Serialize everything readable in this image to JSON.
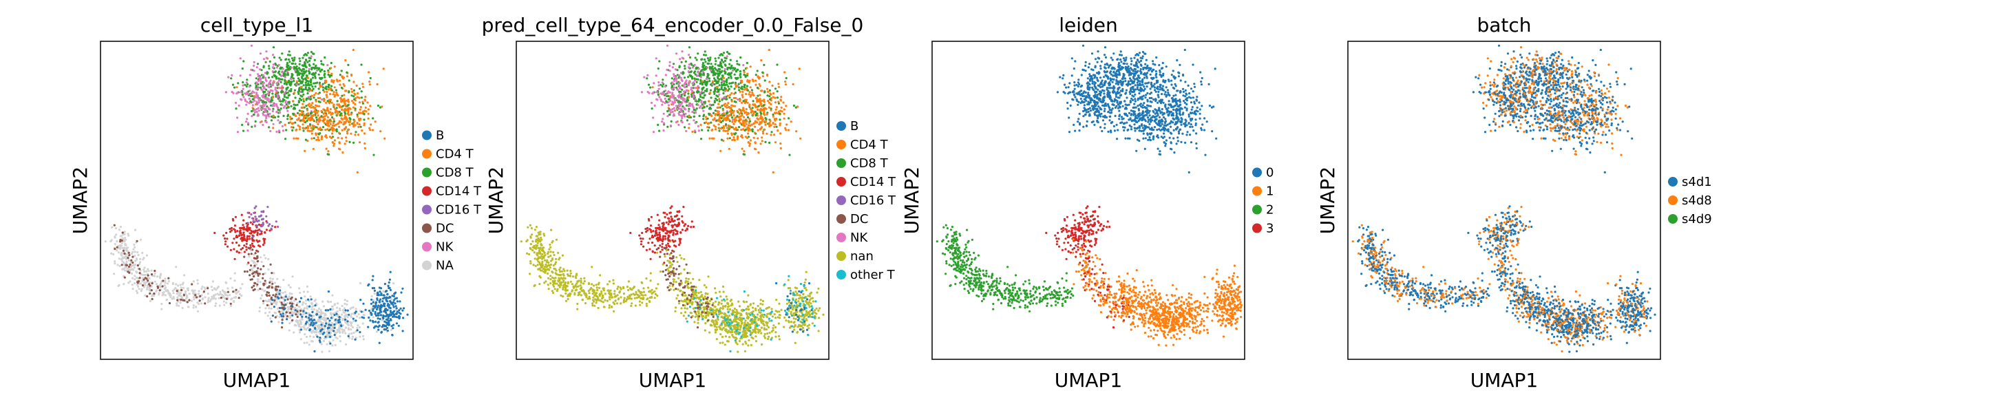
{
  "chart_data": [
    {
      "type": "scatter",
      "title": "cell_type_l1",
      "xlabel": "UMAP1",
      "ylabel": "UMAP2",
      "grid": false,
      "legend_position": "right",
      "categories": [
        {
          "label": "B",
          "color": "#1f77b4"
        },
        {
          "label": "CD4 T",
          "color": "#ff7f0e"
        },
        {
          "label": "CD8 T",
          "color": "#2ca02c"
        },
        {
          "label": "CD14 T",
          "color": "#d62728"
        },
        {
          "label": "CD16 T",
          "color": "#9467bd"
        },
        {
          "label": "DC",
          "color": "#8c564b"
        },
        {
          "label": "NK",
          "color": "#e377c2"
        },
        {
          "label": "NA",
          "color": "#d3d3d3"
        }
      ]
    },
    {
      "type": "scatter",
      "title": "pred_cell_type_64_encoder_0.0_False_0",
      "xlabel": "UMAP1",
      "ylabel": "UMAP2",
      "grid": false,
      "legend_position": "right",
      "categories": [
        {
          "label": "B",
          "color": "#1f77b4"
        },
        {
          "label": "CD4 T",
          "color": "#ff7f0e"
        },
        {
          "label": "CD8 T",
          "color": "#2ca02c"
        },
        {
          "label": "CD14 T",
          "color": "#d62728"
        },
        {
          "label": "CD16 T",
          "color": "#9467bd"
        },
        {
          "label": "DC",
          "color": "#8c564b"
        },
        {
          "label": "NK",
          "color": "#e377c2"
        },
        {
          "label": "nan",
          "color": "#bcbd22"
        },
        {
          "label": "other T",
          "color": "#17becf"
        }
      ]
    },
    {
      "type": "scatter",
      "title": "leiden",
      "xlabel": "UMAP1",
      "ylabel": "UMAP2",
      "grid": false,
      "legend_position": "right",
      "categories": [
        {
          "label": "0",
          "color": "#1f77b4"
        },
        {
          "label": "1",
          "color": "#ff7f0e"
        },
        {
          "label": "2",
          "color": "#2ca02c"
        },
        {
          "label": "3",
          "color": "#d62728"
        }
      ]
    },
    {
      "type": "scatter",
      "title": "batch",
      "xlabel": "UMAP1",
      "ylabel": "UMAP2",
      "grid": false,
      "legend_position": "right",
      "categories": [
        {
          "label": "s4d1",
          "color": "#1f77b4"
        },
        {
          "label": "s4d8",
          "color": "#ff7f0e"
        },
        {
          "label": "s4d9",
          "color": "#2ca02c"
        }
      ]
    }
  ]
}
